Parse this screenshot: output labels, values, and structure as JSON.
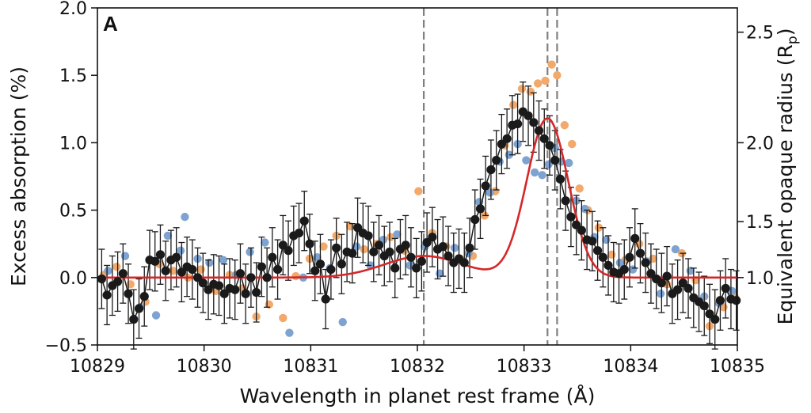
{
  "chart_data": {
    "type": "scatter",
    "panel_label": "A",
    "xlabel": "Wavelength in planet rest frame (Å)",
    "ylabel": "Excess absorption (%)",
    "y2label_main": "Equivalent opaque radius (R",
    "y2label_sub": "p",
    "y2label_close": ")",
    "xlim": [
      10829,
      10835
    ],
    "ylim": [
      -0.5,
      2.0
    ],
    "xticks": [
      10829,
      10830,
      10831,
      10832,
      10833,
      10834,
      10835
    ],
    "yticks": [
      -0.5,
      0.0,
      0.5,
      1.0,
      1.5,
      2.0
    ],
    "ytick_labels": [
      "−0.5",
      "0.0",
      "0.5",
      "1.0",
      "1.5",
      "2.0"
    ],
    "y2ticks": [
      {
        "value": 1.0,
        "label": "1.0",
        "y": 0.0
      },
      {
        "value": 1.5,
        "label": "1.5",
        "y": 0.415
      },
      {
        "value": 2.0,
        "label": "2.0",
        "y": 1.0
      },
      {
        "value": 2.5,
        "label": "2.5",
        "y": 1.82
      }
    ],
    "vlines": [
      10832.06,
      10833.22,
      10833.31
    ],
    "colors": {
      "average": "#1a1a1a",
      "exposure_a": "#f2a96b",
      "exposure_b": "#7fa3d1",
      "model": "#d62728",
      "vline": "#7f7f7f"
    },
    "grid": false,
    "series": [
      {
        "style": "points_with_errorbars",
        "x": [
          10829.04,
          10829.09,
          10829.14,
          10829.19,
          10829.24,
          10829.29,
          10829.34,
          10829.39,
          10829.44,
          10829.49,
          10829.54,
          10829.59,
          10829.64,
          10829.69,
          10829.74,
          10829.79,
          10829.84,
          10829.89,
          10829.94,
          10829.99,
          10830.04,
          10830.09,
          10830.14,
          10830.19,
          10830.24,
          10830.29,
          10830.34,
          10830.39,
          10830.44,
          10830.49,
          10830.54,
          10830.59,
          10830.64,
          10830.69,
          10830.74,
          10830.79,
          10830.84,
          10830.89,
          10830.94,
          10830.99,
          10831.04,
          10831.09,
          10831.14,
          10831.19,
          10831.24,
          10831.29,
          10831.34,
          10831.39,
          10831.44,
          10831.49,
          10831.54,
          10831.59,
          10831.64,
          10831.69,
          10831.74,
          10831.79,
          10831.84,
          10831.89,
          10831.94,
          10831.99,
          10832.04,
          10832.09,
          10832.14,
          10832.19,
          10832.24,
          10832.29,
          10832.34,
          10832.39,
          10832.44,
          10832.49,
          10832.54,
          10832.59,
          10832.64,
          10832.69,
          10832.74,
          10832.79,
          10832.84,
          10832.89,
          10832.94,
          10832.99,
          10833.04,
          10833.09,
          10833.14,
          10833.19,
          10833.24,
          10833.29,
          10833.34,
          10833.39,
          10833.44,
          10833.49,
          10833.54,
          10833.59,
          10833.64,
          10833.69,
          10833.74,
          10833.79,
          10833.84,
          10833.89,
          10833.94,
          10833.99,
          10834.04,
          10834.09,
          10834.14,
          10834.19,
          10834.24,
          10834.29,
          10834.34,
          10834.39,
          10834.44,
          10834.49,
          10834.54,
          10834.59,
          10834.64,
          10834.69,
          10834.74,
          10834.79,
          10834.84,
          10834.89,
          10834.94,
          10834.99
        ],
        "y": [
          -0.01,
          -0.13,
          -0.06,
          -0.03,
          0.03,
          -0.12,
          -0.31,
          -0.23,
          -0.14,
          0.13,
          0.12,
          0.17,
          0.05,
          0.13,
          0.15,
          0.04,
          0.08,
          0.06,
          0.0,
          -0.04,
          -0.09,
          -0.05,
          -0.06,
          -0.12,
          -0.08,
          -0.09,
          0.03,
          -0.12,
          0.0,
          -0.11,
          0.08,
          0.0,
          0.15,
          0.06,
          0.24,
          0.2,
          0.31,
          0.33,
          0.42,
          0.25,
          0.05,
          0.1,
          -0.16,
          0.06,
          0.22,
          0.1,
          0.19,
          0.18,
          0.37,
          0.33,
          0.31,
          0.19,
          0.24,
          0.16,
          0.19,
          0.07,
          0.21,
          0.24,
          0.15,
          0.07,
          0.12,
          0.26,
          0.3,
          0.21,
          0.23,
          0.16,
          0.11,
          0.14,
          0.11,
          0.22,
          0.43,
          0.51,
          0.68,
          0.8,
          0.87,
          0.99,
          1.03,
          1.13,
          1.14,
          1.23,
          1.2,
          1.15,
          1.09,
          1.03,
          0.98,
          0.87,
          0.73,
          0.57,
          0.45,
          0.39,
          0.35,
          0.28,
          0.27,
          0.2,
          0.15,
          0.09,
          0.04,
          0.03,
          0.06,
          0.15,
          0.29,
          0.18,
          0.11,
          0.03,
          -0.01,
          -0.04,
          0.01,
          -0.12,
          -0.09,
          -0.04,
          -0.08,
          -0.15,
          -0.18,
          -0.21,
          -0.27,
          -0.31,
          -0.17,
          -0.08,
          -0.16,
          -0.17
        ],
        "yerr": 0.22
      },
      {
        "style": "points",
        "x": [
          10829.06,
          10829.18,
          10829.31,
          10829.45,
          10829.58,
          10829.71,
          10829.85,
          10829.97,
          10830.11,
          10830.24,
          10830.36,
          10830.49,
          10830.61,
          10830.74,
          10830.86,
          10830.99,
          10831.12,
          10831.24,
          10831.37,
          10831.5,
          10831.62,
          10831.75,
          10831.88,
          10832.01,
          10832.14,
          10832.27,
          10832.4,
          10832.52,
          10832.63,
          10832.73,
          10832.82,
          10832.9,
          10832.98,
          10833.06,
          10833.13,
          10833.2,
          10833.26,
          10833.31,
          10833.38,
          10833.45,
          10833.52,
          10833.6,
          10833.7,
          10833.82,
          10833.95,
          10834.08,
          10834.21,
          10834.34,
          10834.48,
          10834.61,
          10834.74,
          10834.87,
          10834.98
        ],
        "y": [
          0.02,
          0.08,
          -0.05,
          -0.18,
          0.1,
          0.05,
          0.0,
          0.06,
          -0.1,
          0.02,
          -0.08,
          -0.29,
          -0.2,
          -0.3,
          0.01,
          0.14,
          0.23,
          0.31,
          0.38,
          0.21,
          0.25,
          0.3,
          0.2,
          0.64,
          0.33,
          0.23,
          0.14,
          0.16,
          0.46,
          0.64,
          0.98,
          1.28,
          1.4,
          1.38,
          1.44,
          1.46,
          1.58,
          1.5,
          1.13,
          0.99,
          0.66,
          0.5,
          0.37,
          0.17,
          0.13,
          0.25,
          0.14,
          -0.05,
          0.18,
          -0.02,
          -0.36,
          -0.22,
          -0.15
        ]
      },
      {
        "style": "points",
        "x": [
          10829.1,
          10829.26,
          10829.4,
          10829.55,
          10829.66,
          10829.78,
          10829.82,
          10829.94,
          10830.05,
          10830.18,
          10830.3,
          10830.43,
          10830.57,
          10830.69,
          10830.8,
          10830.93,
          10831.06,
          10831.18,
          10831.3,
          10831.43,
          10831.56,
          10831.68,
          10831.81,
          10831.93,
          10832.07,
          10832.21,
          10832.35,
          10832.48,
          10832.58,
          10832.68,
          10832.77,
          10832.86,
          10832.94,
          10833.02,
          10833.1,
          10833.17,
          10833.23,
          10833.29,
          10833.35,
          10833.42,
          10833.49,
          10833.57,
          10833.66,
          10833.77,
          10833.9,
          10834.02,
          10834.15,
          10834.28,
          10834.42,
          10834.56,
          10834.69,
          10834.83,
          10834.95
        ],
        "y": [
          0.05,
          0.16,
          -0.22,
          -0.28,
          0.31,
          0.2,
          0.45,
          0.14,
          0.11,
          0.13,
          0.02,
          0.19,
          0.26,
          0.06,
          -0.41,
          0.0,
          0.15,
          0.07,
          -0.33,
          0.23,
          0.09,
          0.28,
          0.32,
          0.09,
          0.23,
          0.03,
          0.22,
          0.18,
          0.56,
          0.63,
          0.86,
          0.91,
          0.99,
          0.87,
          0.78,
          0.76,
          0.84,
          0.96,
          0.86,
          0.85,
          0.57,
          0.51,
          0.3,
          0.28,
          0.11,
          0.06,
          0.12,
          -0.12,
          0.21,
          0.05,
          -0.14,
          -0.19,
          -0.1
        ]
      },
      {
        "style": "model_line",
        "gauss1": {
          "amplitude": 1.18,
          "center": 10833.22,
          "sigma": 0.195
        },
        "gauss2": {
          "amplitude": 0.16,
          "center": 10832.06,
          "sigma": 0.37
        }
      }
    ]
  }
}
